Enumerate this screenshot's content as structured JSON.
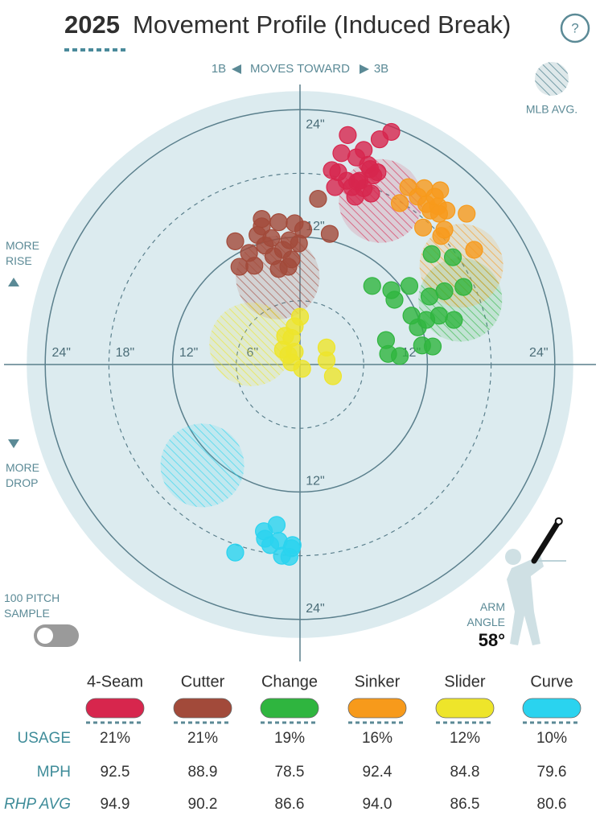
{
  "chart_data": {
    "type": "scatter",
    "title_year": "2025",
    "title": "Movement Profile (Induced Break)",
    "help": "?",
    "x_label": {
      "left": "1B",
      "text": "MOVES TOWARD",
      "right": "3B"
    },
    "legend_avg": "MLB AVG.",
    "y_up": "MORE RISE",
    "y_down": "MORE DROP",
    "sample_toggle": "100 PITCH SAMPLE",
    "arm_angle_label": "ARM ANGLE",
    "arm_angle": {
      "value": 58,
      "label": "58°"
    },
    "rings": [
      {
        "value": 6,
        "label": "6\""
      },
      {
        "value": 12,
        "label": "12\""
      },
      {
        "value": 18,
        "label": "18\""
      },
      {
        "value": 24,
        "label": "24\""
      }
    ],
    "table_rows": [
      "USAGE",
      "MPH",
      "RHP AVG"
    ],
    "series": [
      {
        "name": "4-Seam",
        "color": "#d7264d",
        "x": [
          4.5,
          8.6,
          7.5,
          3.9,
          6.0,
          5.3,
          6.4,
          3.0,
          3.6,
          5.6,
          6.9,
          3.3,
          4.9,
          5.4,
          6.0,
          6.7,
          5.2,
          7.3,
          6.6,
          4.4
        ],
        "y": [
          21.6,
          21.9,
          21.2,
          19.9,
          20.2,
          19.5,
          18.8,
          18.3,
          18.1,
          17.3,
          17.8,
          16.7,
          16.7,
          17.2,
          16.6,
          16.1,
          15.8,
          18.1,
          18.4,
          17.3
        ],
        "avg_x": 7.6,
        "avg_y": 15.4,
        "usage": {
          "value": 21,
          "label": "21%"
        },
        "mph": 92.5,
        "rhp_avg": 94.9
      },
      {
        "name": "Cutter",
        "color": "#a24a3a",
        "x": [
          1.7,
          2.8,
          -3.6,
          -2.0,
          -0.5,
          0.3,
          -6.1,
          -4.0,
          -2.7,
          -1.0,
          -0.1,
          -3.3,
          -1.6,
          -4.8,
          -2.5,
          -0.8,
          -5.7,
          -4.3,
          -2.0,
          -1.1,
          -3.6
        ],
        "y": [
          15.6,
          12.3,
          13.7,
          13.4,
          13.3,
          12.7,
          11.6,
          12.2,
          11.9,
          11.7,
          11.4,
          11.2,
          10.8,
          10.5,
          10.2,
          9.9,
          9.2,
          9.3,
          9.0,
          9.2,
          13.0
        ],
        "avg_x": -2.1,
        "avg_y": 8.2,
        "usage": {
          "value": 21,
          "label": "21%"
        },
        "mph": 88.9,
        "rhp_avg": 90.2
      },
      {
        "name": "Change",
        "color": "#2fb53f",
        "x": [
          6.8,
          8.6,
          10.3,
          12.4,
          14.4,
          15.4,
          13.6,
          12.2,
          8.9,
          10.5,
          11.1,
          11.9,
          14.5,
          8.1,
          12.5,
          8.3,
          9.4,
          11.5,
          13.1
        ],
        "y": [
          7.4,
          7.0,
          7.4,
          10.4,
          10.1,
          7.3,
          6.9,
          6.4,
          6.1,
          4.6,
          3.5,
          4.2,
          4.2,
          2.3,
          1.7,
          1.0,
          0.8,
          1.8,
          4.6
        ],
        "avg_x": 15.1,
        "avg_y": 6.1,
        "usage": {
          "value": 19,
          "label": "19%"
        },
        "mph": 78.5,
        "rhp_avg": 86.6
      },
      {
        "name": "Sinker",
        "color": "#f79a1b",
        "x": [
          10.2,
          11.7,
          13.2,
          9.4,
          11.1,
          11.9,
          13.0,
          13.8,
          15.7,
          12.3,
          11.6,
          13.3,
          13.6,
          16.4,
          12.7,
          13.1
        ],
        "y": [
          16.7,
          16.6,
          16.4,
          15.2,
          15.8,
          15.1,
          14.9,
          14.5,
          14.2,
          14.5,
          12.9,
          12.1,
          12.7,
          10.8,
          15.8,
          14.2
        ],
        "avg_x": 15.2,
        "avg_y": 9.3,
        "usage": {
          "value": 16,
          "label": "16%"
        },
        "mph": 92.4,
        "rhp_avg": {
          "value": 94,
          "label": "94.0"
        }
      },
      {
        "name": "Slider",
        "color": "#eee52a",
        "x": [
          0.0,
          -0.5,
          -1.4,
          -1.6,
          -0.5,
          -0.8,
          0.2,
          2.5,
          2.5,
          3.1,
          -0.8,
          -1.1
        ],
        "y": [
          4.5,
          3.6,
          2.7,
          1.4,
          1.2,
          0.2,
          -0.4,
          1.6,
          0.4,
          -1.1,
          2.5,
          0.9
        ],
        "avg_x": -4.6,
        "avg_y": 1.9,
        "usage": {
          "value": 12,
          "label": "12%"
        },
        "mph": 84.8,
        "rhp_avg": 86.5
      },
      {
        "name": "Curve",
        "color": "#2ad3ef",
        "x": [
          -6.1,
          -3.4,
          -2.2,
          -2.8,
          -2.0,
          -0.7,
          -1.7,
          -1.0,
          -0.8,
          -3.3
        ],
        "y": [
          -17.7,
          -15.7,
          -15.1,
          -17.0,
          -16.6,
          -17.0,
          -18.0,
          -18.1,
          -17.3,
          -16.4
        ],
        "avg_x": -9.2,
        "avg_y": -9.5,
        "usage": {
          "value": 10,
          "label": "10%"
        },
        "mph": 79.6,
        "rhp_avg": 80.6
      }
    ]
  }
}
